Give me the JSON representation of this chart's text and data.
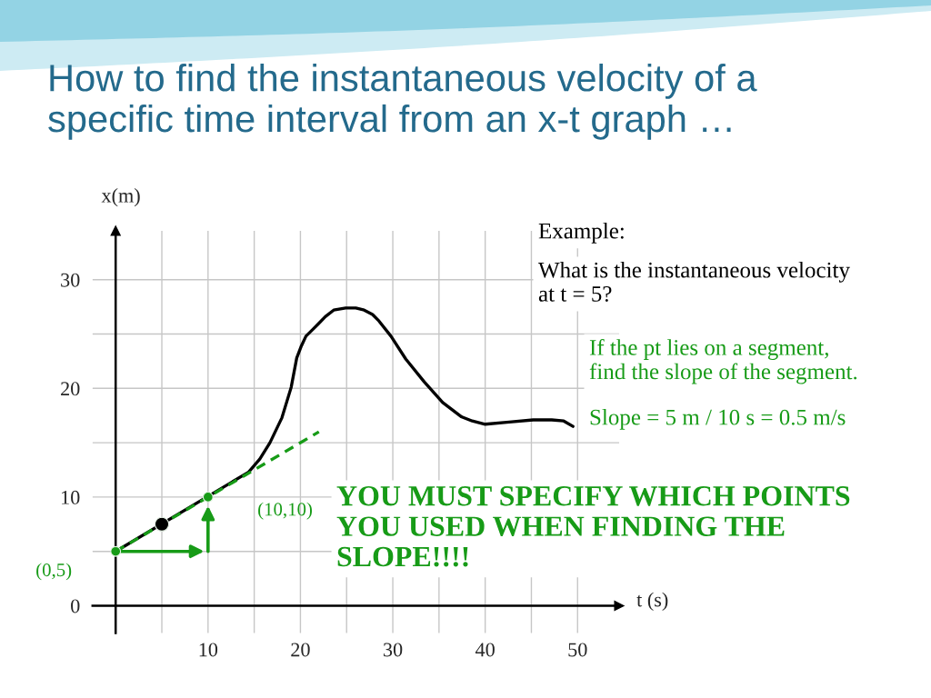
{
  "chart_data": {
    "type": "line",
    "title": "How to find the instantaneous velocity of a specific time interval from an x-t graph …",
    "xlabel": "t (s)",
    "ylabel": "x(m)",
    "xlim": [
      -2.5,
      54.5
    ],
    "ylim": [
      -2.5,
      34.5
    ],
    "xticks": [
      {
        "value": 5,
        "label": null
      },
      10,
      {
        "value": 15,
        "label": null
      },
      20,
      {
        "value": 25,
        "label": null
      },
      30,
      {
        "value": 35,
        "label": null
      },
      40,
      {
        "value": 45,
        "label": null
      },
      50
    ],
    "yticks": [
      0,
      {
        "value": 5,
        "label": null
      },
      10,
      {
        "value": 15,
        "label": null
      },
      20,
      {
        "value": 25,
        "label": null
      },
      30
    ],
    "grid": true,
    "series": [
      {
        "color": "#000000",
        "x": [
          0,
          14.4,
          15.6,
          16.7,
          18.0,
          19.0,
          19.6,
          20.1,
          20.6,
          21.2,
          21.9,
          22.7,
          23.6,
          24.9,
          26.0,
          26.9,
          27.8,
          28.5,
          29.8,
          31.4,
          33.4,
          35.4,
          37.4,
          38.6,
          40.0,
          42.6,
          45.2,
          47.2,
          48.5,
          49.5
        ],
        "values": [
          5,
          12.3,
          13.5,
          15.0,
          17.3,
          20.1,
          22.8,
          23.9,
          24.8,
          25.3,
          25.9,
          26.6,
          27.2,
          27.4,
          27.4,
          27.2,
          26.8,
          26.2,
          24.8,
          22.7,
          20.6,
          18.7,
          17.4,
          17.0,
          16.7,
          16.9,
          17.1,
          17.1,
          17.0,
          16.5
        ]
      },
      {
        "type": "line",
        "color": "#179b17",
        "x": [
          0,
          22
        ],
        "values": [
          5,
          16
        ],
        "line_style": "dashed"
      },
      {
        "type": "scatter",
        "color": "#000000",
        "x": [
          5
        ],
        "values": [
          7.5
        ],
        "marker": "circle"
      },
      {
        "type": "scatter",
        "color": "#179b17",
        "x": [
          0,
          10
        ],
        "values": [
          5,
          10
        ],
        "marker": "circle"
      }
    ],
    "annotations": [
      {
        "text": "(0,5)",
        "x": 0,
        "y": 5
      },
      {
        "text": "(10,10)",
        "x": 10,
        "y": 10
      },
      "Example:",
      "What is the instantaneous velocity at t = 5?",
      "If the pt lies on a segment, find the slope of the segment.",
      "Slope = 5 m / 10 s = 0.5 m/s",
      "YOU MUST SPECIFY WHICH POINTS YOU USED WHEN FINDING THE SLOPE!!!!"
    ]
  }
}
